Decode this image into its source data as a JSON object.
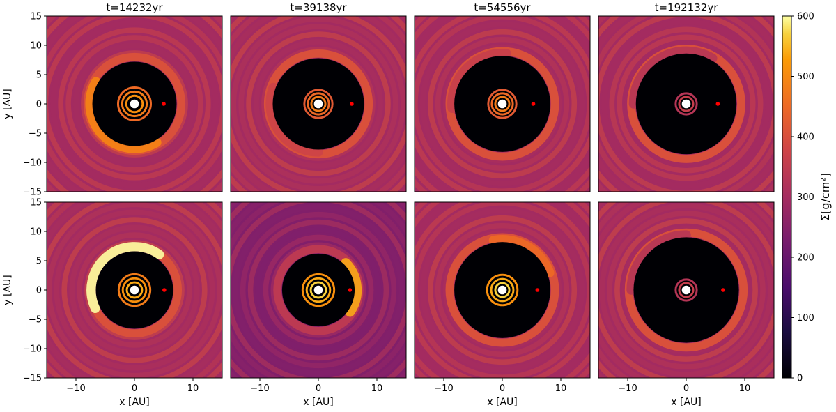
{
  "chart_data": {
    "type": "heatmap",
    "grid": "2x4 panels",
    "columns": [
      {
        "title": "t=14232yr",
        "time_yr": 14232
      },
      {
        "title": "t=39138yr",
        "time_yr": 39138
      },
      {
        "title": "t=54556yr",
        "time_yr": 54556
      },
      {
        "title": "t=192132yr",
        "time_yr": 192132
      }
    ],
    "panels": [
      {
        "row": 0,
        "col": 0,
        "planet": {
          "x": 5.0,
          "y": 0
        },
        "gap_radius": 7.2,
        "inner_rings": [
          1.4,
          2.1,
          2.8
        ],
        "inner_intensity": 0.85,
        "crescent": {
          "angle_deg": 225,
          "span_deg": 150,
          "radius": 7.6,
          "intensity": 0.82
        },
        "outer_level": 0.55
      },
      {
        "row": 0,
        "col": 1,
        "planet": {
          "x": 5.7,
          "y": 0
        },
        "gap_radius": 7.8,
        "inner_rings": [
          1.2,
          1.8,
          2.4
        ],
        "inner_intensity": 0.8,
        "crescent": {
          "angle_deg": 215,
          "span_deg": 110,
          "radius": 8.2,
          "intensity": 0.62
        },
        "outer_level": 0.55
      },
      {
        "row": 0,
        "col": 2,
        "planet": {
          "x": 5.3,
          "y": 0
        },
        "gap_radius": 8.2,
        "inner_rings": [
          1.2,
          1.8,
          2.4
        ],
        "inner_intensity": 0.8,
        "crescent": {
          "angle_deg": 135,
          "span_deg": 100,
          "radius": 8.6,
          "intensity": 0.6
        },
        "outer_level": 0.55
      },
      {
        "row": 0,
        "col": 3,
        "planet": {
          "x": 5.4,
          "y": 0
        },
        "gap_radius": 8.6,
        "inner_rings": [
          1.2,
          1.8
        ],
        "inner_intensity": 0.6,
        "crescent": {
          "angle_deg": 120,
          "span_deg": 120,
          "radius": 9.0,
          "intensity": 0.55
        },
        "outer_level": 0.55
      },
      {
        "row": 1,
        "col": 0,
        "planet": {
          "x": 5.1,
          "y": 0
        },
        "gap_radius": 6.6,
        "inner_rings": [
          1.3,
          2.0,
          2.7
        ],
        "inner_intensity": 0.9,
        "crescent": {
          "angle_deg": 130,
          "span_deg": 150,
          "radius": 7.4,
          "intensity": 1.0
        },
        "outer_level": 0.55
      },
      {
        "row": 1,
        "col": 1,
        "planet": {
          "x": 5.4,
          "y": 0
        },
        "gap_radius": 6.2,
        "inner_rings": [
          1.3,
          2.0,
          2.7
        ],
        "inner_intensity": 0.95,
        "crescent": {
          "angle_deg": 5,
          "span_deg": 80,
          "radius": 6.6,
          "intensity": 0.9
        },
        "outer_level": 0.45
      },
      {
        "row": 1,
        "col": 2,
        "planet": {
          "x": 6.0,
          "y": 0
        },
        "gap_radius": 8.2,
        "inner_rings": [
          1.2,
          1.9,
          2.6
        ],
        "inner_intensity": 0.95,
        "crescent": {
          "angle_deg": 60,
          "span_deg": 80,
          "radius": 8.6,
          "intensity": 0.75
        },
        "outer_level": 0.55
      },
      {
        "row": 1,
        "col": 3,
        "planet": {
          "x": 6.3,
          "y": 0
        },
        "gap_radius": 9.0,
        "inner_rings": [
          1.2,
          1.8
        ],
        "inner_intensity": 0.6,
        "crescent": {
          "angle_deg": 135,
          "span_deg": 90,
          "radius": 9.4,
          "intensity": 0.55
        },
        "outer_level": 0.55
      }
    ],
    "xlabel": "x [AU]",
    "ylabel": "y [AU]",
    "xlim": [
      -15,
      15
    ],
    "ylim": [
      -15,
      15
    ],
    "xticks": [
      -10,
      0,
      10
    ],
    "yticks": [
      15,
      10,
      5,
      0,
      -5,
      -10,
      -15
    ],
    "colorbar": {
      "label": "Σ[g/cm²]",
      "range": [
        0,
        600
      ],
      "ticks": [
        0,
        100,
        200,
        300,
        400,
        500,
        600
      ],
      "colormap": "inferno"
    },
    "planet_color": "#ff0000"
  }
}
